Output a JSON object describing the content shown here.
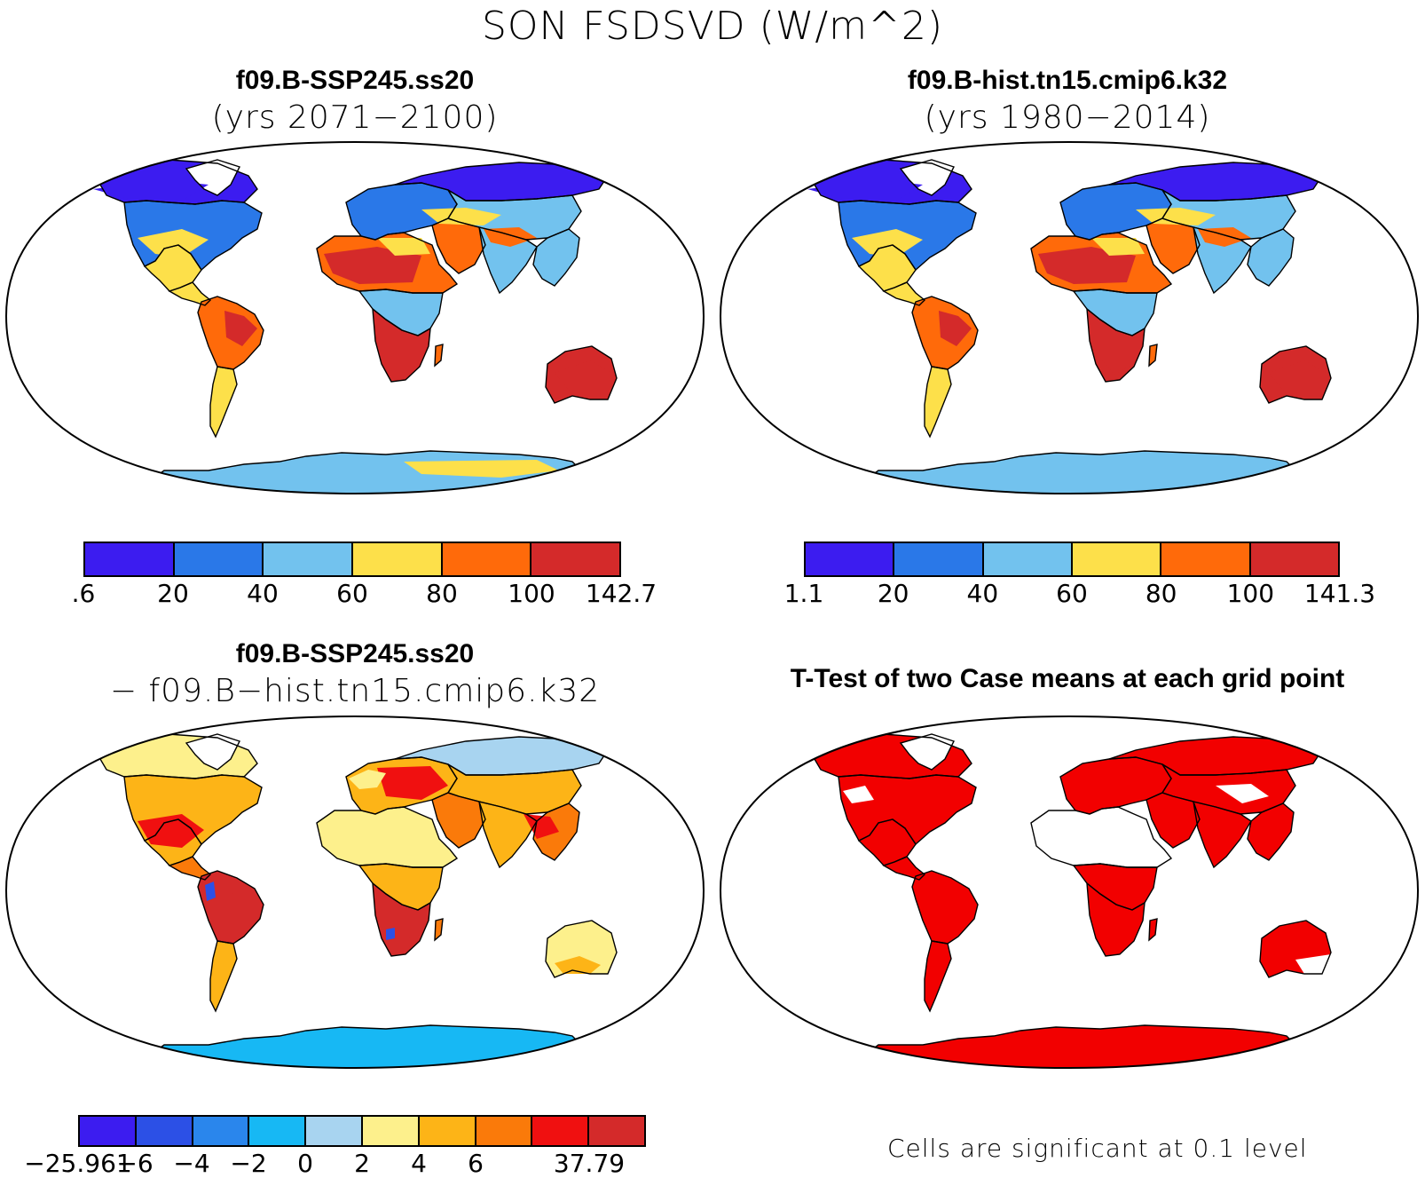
{
  "title": "SON FSDSVD (W/m^2)",
  "panels": [
    {
      "title": "f09.B-SSP245.ss20",
      "subtitle": "(yrs 2071−2100)"
    },
    {
      "title": "f09.B-hist.tn15.cmip6.k32",
      "subtitle": "(yrs 1980−2014)"
    },
    {
      "title": "f09.B-SSP245.ss20",
      "subtitle": "− f09.B−hist.tn15.cmip6.k32"
    },
    {
      "title": "T-Test of two Case means at each grid point",
      "subtitle": ""
    }
  ],
  "colorbars": [
    {
      "colors": [
        "#3c1cf0",
        "#2a78e8",
        "#72c2ee",
        "#fde04a",
        "#ff6a0a",
        "#d42a2a"
      ],
      "ticks": [
        ".6",
        "20",
        "40",
        "60",
        "80",
        "100",
        "142.7"
      ]
    },
    {
      "colors": [
        "#3c1cf0",
        "#2a78e8",
        "#72c2ee",
        "#fde04a",
        "#ff6a0a",
        "#d42a2a"
      ],
      "ticks": [
        "1.1",
        "20",
        "40",
        "60",
        "80",
        "100",
        "141.3"
      ]
    },
    {
      "colors": [
        "#3c1cf0",
        "#2c50e6",
        "#2a86ec",
        "#17b8f4",
        "#a8d4f0",
        "#fdf08c",
        "#fdb417",
        "#fa7a0a",
        "#f01010",
        "#d42a2a"
      ],
      "ticks": [
        "−25.961",
        "−6",
        "−4",
        "−2",
        "0",
        "2",
        "4",
        "6",
        "",
        "37.79"
      ]
    }
  ],
  "ttest_note": "Cells are significant at 0.1 level",
  "significance_color": "#f20000"
}
